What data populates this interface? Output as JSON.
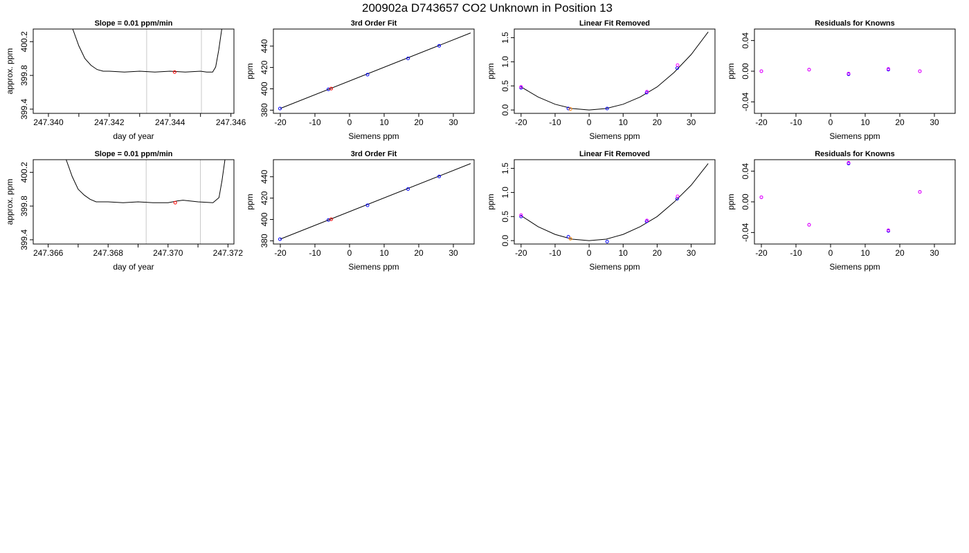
{
  "figure_title": "200902a     D743657   CO2 Unknown in Position  13",
  "chart_data": [
    {
      "type": "line",
      "title": "Slope =  0.01  ppm/min",
      "xlabel": "day of year",
      "ylabel": "approx. ppm",
      "xlim": [
        247.3395,
        247.3461
      ],
      "ylim": [
        399.35,
        400.35
      ],
      "xticks": [
        "247.340",
        "247.342",
        "247.344",
        "247.346"
      ],
      "xtick_values": [
        247.34,
        247.342,
        247.344,
        247.346
      ],
      "minor_xticks": [
        247.341,
        247.343,
        247.345
      ],
      "yticks": [
        "399.4",
        "399.8",
        "400.2"
      ],
      "ytick_values": [
        399.4,
        399.8,
        400.2
      ],
      "vlines": [
        247.34323,
        247.34503
      ],
      "series": [
        {
          "x": [
            247.3408,
            247.341,
            247.3412,
            247.3414,
            247.3416,
            247.3418,
            247.342,
            247.3425,
            247.343,
            247.3435,
            247.344,
            247.3445,
            247.345,
            247.3452,
            247.3454,
            247.3455,
            247.3456,
            247.3457
          ],
          "y": [
            400.35,
            400.15,
            400.0,
            399.92,
            399.87,
            399.85,
            399.85,
            399.84,
            399.85,
            399.84,
            399.85,
            399.84,
            399.85,
            399.84,
            399.84,
            399.9,
            400.1,
            400.35
          ]
        }
      ],
      "highlight": {
        "x": 247.34415,
        "y": 399.84,
        "color": "#ff0000"
      }
    },
    {
      "type": "scatter",
      "title": "3rd Order Fit",
      "xlabel": "Siemens ppm",
      "ylabel": "ppm",
      "xlim": [
        -22,
        36
      ],
      "ylim": [
        377,
        456
      ],
      "xticks": [
        "-20",
        "-10",
        "0",
        "10",
        "20",
        "30"
      ],
      "xtick_values": [
        -20,
        -10,
        0,
        10,
        20,
        30
      ],
      "yticks": [
        "380",
        "400",
        "420",
        "440"
      ],
      "ytick_values": [
        380,
        400,
        420,
        440
      ],
      "fit_line": {
        "x": [
          -20,
          35
        ],
        "y": [
          381.6,
          452.4
        ]
      },
      "series": [
        {
          "name": "",
          "color": "#0000ff",
          "x": [
            -20.1,
            -6.1,
            5.2,
            16.9,
            25.9
          ],
          "y": [
            381.5,
            399.5,
            413.3,
            428.5,
            440.3
          ]
        },
        {
          "name": "",
          "color": "#ff0000",
          "x": [
            -5.3
          ],
          "y": [
            400.2
          ]
        }
      ]
    },
    {
      "type": "scatter",
      "title": "Linear Fit Removed",
      "xlabel": "Siemens ppm",
      "ylabel": "ppm",
      "xlim": [
        -22,
        37
      ],
      "ylim": [
        -0.07,
        1.68
      ],
      "xticks": [
        "-20",
        "-10",
        "0",
        "10",
        "20",
        "30"
      ],
      "xtick_values": [
        -20,
        -10,
        0,
        10,
        20,
        30
      ],
      "yticks": [
        "0.0",
        "0.5",
        "1.0",
        "1.5"
      ],
      "ytick_values": [
        0.0,
        0.5,
        1.0,
        1.5
      ],
      "fit_curve": {
        "x": [
          -20,
          -15,
          -10,
          -5,
          0,
          5,
          10,
          15,
          20,
          25,
          30,
          35
        ],
        "y": [
          0.48,
          0.27,
          0.12,
          0.03,
          0.0,
          0.03,
          0.12,
          0.27,
          0.48,
          0.78,
          1.15,
          1.62
        ]
      },
      "series": [
        {
          "name": "",
          "color": "#0000ff",
          "x": [
            -20,
            -6.1,
            5.3,
            16.9,
            25.9
          ],
          "y": [
            0.46,
            0.03,
            0.03,
            0.36,
            0.87
          ]
        },
        {
          "name": "",
          "color": "#ff00ff",
          "x": [
            -20,
            17.0,
            26.0
          ],
          "y": [
            0.48,
            0.38,
            0.93
          ]
        },
        {
          "name": "",
          "color": "#ff8000",
          "x": [
            -5.5
          ],
          "y": [
            0.02
          ]
        }
      ]
    },
    {
      "type": "scatter",
      "title": "Residuals for Knowns",
      "xlabel": "Siemens ppm",
      "ylabel": "ppm",
      "xlim": [
        -22,
        36
      ],
      "ylim": [
        -0.055,
        0.055
      ],
      "xticks": [
        "-20",
        "-10",
        "0",
        "10",
        "20",
        "30"
      ],
      "xtick_values": [
        -20,
        -10,
        0,
        10,
        20,
        30
      ],
      "yticks": [
        "-0.04",
        "0.00",
        "0.04"
      ],
      "ytick_values": [
        -0.04,
        0.0,
        0.04
      ],
      "series": [
        {
          "name": "",
          "color": "#0000ff",
          "x": [
            -20,
            -6.2,
            5.2,
            16.7,
            25.8
          ],
          "y": [
            0.0,
            0.002,
            -0.004,
            0.002,
            0.0
          ]
        },
        {
          "name": "",
          "color": "#ff00ff",
          "x": [
            -20,
            -6.2,
            5.2,
            16.7,
            25.8
          ],
          "y": [
            0.0,
            0.002,
            -0.003,
            0.003,
            0.0
          ]
        }
      ]
    },
    {
      "type": "line",
      "title": "Slope =  0.01  ppm/min",
      "xlabel": "day of year",
      "ylabel": "approx. ppm",
      "xlim": [
        247.3655,
        247.3722
      ],
      "ylim": [
        399.35,
        400.35
      ],
      "xticks": [
        "247.366",
        "247.368",
        "247.370",
        "247.372"
      ],
      "xtick_values": [
        247.366,
        247.368,
        247.37,
        247.372
      ],
      "minor_xticks": [
        247.367,
        247.369,
        247.371
      ],
      "yticks": [
        "399.4",
        "399.8",
        "400.2"
      ],
      "ytick_values": [
        399.4,
        399.8,
        400.2
      ],
      "vlines": [
        247.36927,
        247.37108
      ],
      "series": [
        {
          "x": [
            247.3666,
            247.3668,
            247.367,
            247.3672,
            247.3674,
            247.3676,
            247.368,
            247.3685,
            247.369,
            247.3695,
            247.37,
            247.3703,
            247.3705,
            247.371,
            247.3715,
            247.3717,
            247.3718,
            247.3719
          ],
          "y": [
            400.35,
            400.15,
            400.0,
            399.93,
            399.88,
            399.85,
            399.85,
            399.84,
            399.85,
            399.84,
            399.84,
            399.86,
            399.87,
            399.85,
            399.84,
            399.9,
            400.1,
            400.35
          ]
        }
      ],
      "highlight": {
        "x": 247.37024,
        "y": 399.84,
        "color": "#ff0000"
      }
    },
    {
      "type": "scatter",
      "title": "3rd Order Fit",
      "xlabel": "Siemens ppm",
      "ylabel": "ppm",
      "xlim": [
        -22,
        36
      ],
      "ylim": [
        377,
        456
      ],
      "xticks": [
        "-20",
        "-10",
        "0",
        "10",
        "20",
        "30"
      ],
      "xtick_values": [
        -20,
        -10,
        0,
        10,
        20,
        30
      ],
      "yticks": [
        "380",
        "400",
        "420",
        "440"
      ],
      "ytick_values": [
        380,
        400,
        420,
        440
      ],
      "fit_line": {
        "x": [
          -20,
          35
        ],
        "y": [
          381.6,
          452.4
        ]
      },
      "series": [
        {
          "name": "",
          "color": "#0000ff",
          "x": [
            -20.1,
            -6.1,
            5.2,
            16.9,
            25.9
          ],
          "y": [
            381.5,
            399.5,
            413.3,
            428.5,
            440.3
          ]
        },
        {
          "name": "",
          "color": "#ff0000",
          "x": [
            -5.3
          ],
          "y": [
            400.2
          ]
        }
      ]
    },
    {
      "type": "scatter",
      "title": "Linear Fit Removed",
      "xlabel": "Siemens ppm",
      "ylabel": "ppm",
      "xlim": [
        -22,
        37
      ],
      "ylim": [
        -0.07,
        1.68
      ],
      "xticks": [
        "-20",
        "-10",
        "0",
        "10",
        "20",
        "30"
      ],
      "xtick_values": [
        -20,
        -10,
        0,
        10,
        20,
        30
      ],
      "yticks": [
        "0.0",
        "0.5",
        "1.0",
        "1.5"
      ],
      "ytick_values": [
        0.0,
        0.5,
        1.0,
        1.5
      ],
      "fit_curve": {
        "x": [
          -20,
          -15,
          -10,
          -5,
          0,
          5,
          10,
          15,
          20,
          25,
          30,
          35
        ],
        "y": [
          0.52,
          0.29,
          0.13,
          0.03,
          0.0,
          0.03,
          0.13,
          0.29,
          0.5,
          0.8,
          1.15,
          1.6
        ]
      },
      "series": [
        {
          "name": "",
          "color": "#0000ff",
          "x": [
            -20,
            -6.1,
            5.3,
            16.9,
            25.9
          ],
          "y": [
            0.5,
            0.08,
            -0.02,
            0.4,
            0.87
          ]
        },
        {
          "name": "",
          "color": "#ff00ff",
          "x": [
            -20,
            17.0,
            26.0
          ],
          "y": [
            0.53,
            0.42,
            0.92
          ]
        },
        {
          "name": "",
          "color": "#ff8000",
          "x": [
            -5.5
          ],
          "y": [
            0.04
          ]
        }
      ]
    },
    {
      "type": "scatter",
      "title": "Residuals for Knowns",
      "xlabel": "Siemens ppm",
      "ylabel": "ppm",
      "xlim": [
        -22,
        36
      ],
      "ylim": [
        -0.055,
        0.055
      ],
      "xticks": [
        "-20",
        "-10",
        "0",
        "10",
        "20",
        "30"
      ],
      "xtick_values": [
        -20,
        -10,
        0,
        10,
        20,
        30
      ],
      "yticks": [
        "-0.04",
        "0.00",
        "0.04"
      ],
      "ytick_values": [
        -0.04,
        0.0,
        0.04
      ],
      "series": [
        {
          "name": "",
          "color": "#0000ff",
          "x": [
            -20,
            -6.2,
            5.2,
            16.7,
            25.8
          ],
          "y": [
            0.006,
            -0.03,
            0.05,
            -0.038,
            0.013
          ]
        },
        {
          "name": "",
          "color": "#ff00ff",
          "x": [
            -20,
            -6.2,
            5.2,
            16.7,
            25.8
          ],
          "y": [
            0.006,
            -0.03,
            0.051,
            -0.037,
            0.013
          ]
        }
      ]
    }
  ]
}
